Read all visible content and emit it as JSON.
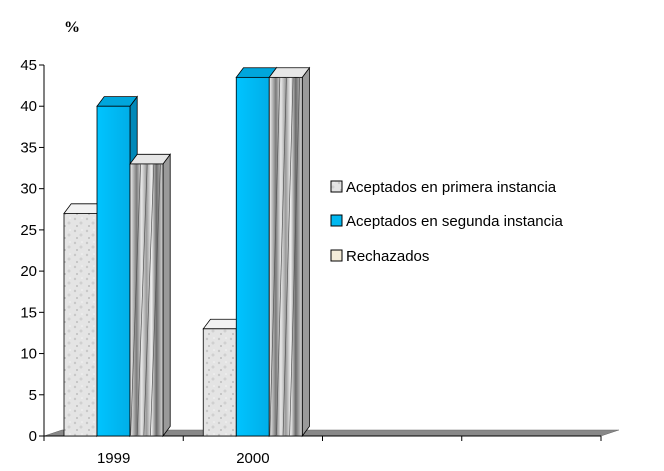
{
  "chart_data": {
    "type": "bar",
    "title": "",
    "unit_label": "%",
    "xlabel": "",
    "ylabel": "",
    "categories": [
      "1999",
      "2000"
    ],
    "series": [
      {
        "name": "Aceptados en primera instancia",
        "values": [
          27,
          13
        ],
        "color": "#e0e0e0",
        "pattern": "marble-gray"
      },
      {
        "name": "Aceptados en segunda instancia",
        "values": [
          40,
          43.5
        ],
        "color": "#00b8f0"
      },
      {
        "name": "Rechazados",
        "values": [
          33,
          43.5
        ],
        "color": "#f4ecd8",
        "pattern": "folded-gray-sheets"
      }
    ],
    "ylim": [
      0,
      45
    ],
    "yticks": [
      0,
      5,
      10,
      15,
      20,
      25,
      30,
      35,
      40,
      45
    ],
    "grid": false,
    "legend_position": "right",
    "three_d": true
  }
}
